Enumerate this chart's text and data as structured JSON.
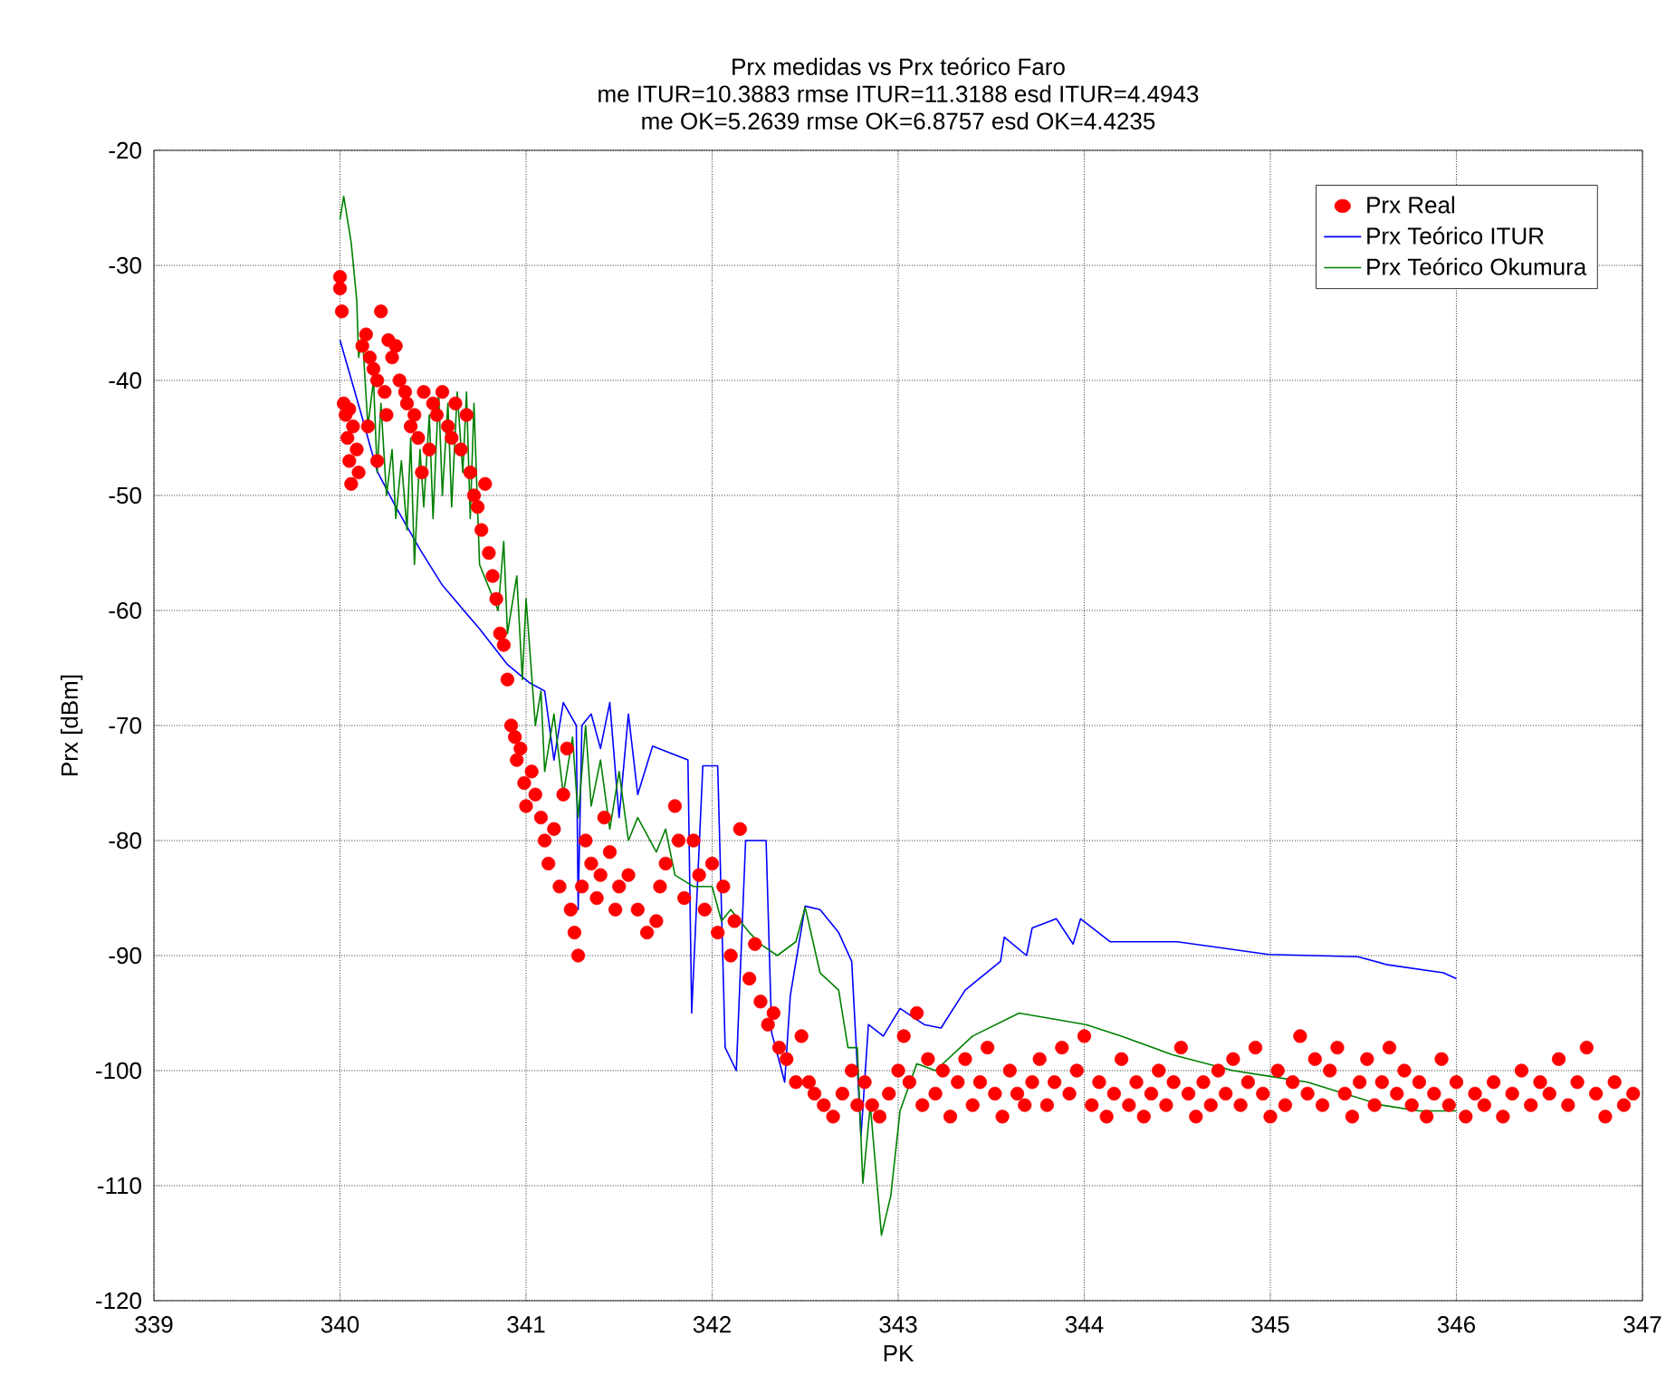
{
  "chart_data": {
    "type": "line",
    "title": "Prx medidas vs Prx teórico Faro",
    "subtitle": "me ITUR=10.3883 rmse ITUR=11.3188 esd ITUR=4.4943",
    "annotations": [
      "me OK=5.2639 rmse OK=6.8757 esd OK=4.4235"
    ],
    "xlabel": "PK",
    "ylabel": "Prx [dBm]",
    "xlim": [
      339,
      347
    ],
    "ylim": [
      -120,
      -20
    ],
    "xticks": [
      339,
      340,
      341,
      342,
      343,
      344,
      345,
      346,
      347
    ],
    "yticks": [
      -120,
      -110,
      -100,
      -90,
      -80,
      -70,
      -60,
      -50,
      -40,
      -30,
      -20
    ],
    "grid": true,
    "legend": "top right",
    "series": [
      {
        "name": "Prx Real",
        "type": "scatter",
        "marker": "circle",
        "color": "#ff0000",
        "x": [
          340.0,
          340.0,
          340.01,
          340.02,
          340.03,
          340.04,
          340.05,
          340.06,
          340.07,
          340.09,
          340.1,
          340.05,
          340.12,
          340.14,
          340.16,
          340.18,
          340.2,
          340.22,
          340.24,
          340.26,
          340.28,
          340.3,
          340.15,
          340.2,
          340.25,
          340.32,
          340.35,
          340.38,
          340.4,
          340.42,
          340.45,
          340.48,
          340.36,
          340.44,
          340.5,
          340.52,
          340.55,
          340.58,
          340.6,
          340.62,
          340.65,
          340.68,
          340.7,
          340.72,
          340.74,
          340.76,
          340.78,
          340.8,
          340.82,
          340.84,
          340.86,
          340.88,
          340.9,
          340.92,
          340.94,
          340.95,
          340.97,
          340.99,
          341.0,
          341.03,
          341.05,
          341.08,
          341.1,
          341.12,
          341.15,
          341.18,
          341.2,
          341.22,
          341.24,
          341.26,
          341.28,
          341.3,
          341.32,
          341.35,
          341.38,
          341.4,
          341.42,
          341.45,
          341.48,
          341.5,
          341.55,
          341.6,
          341.65,
          341.7,
          341.72,
          341.75,
          341.8,
          341.82,
          341.85,
          341.9,
          341.93,
          341.96,
          342.0,
          342.03,
          342.06,
          342.1,
          342.12,
          342.15,
          342.2,
          342.23,
          342.26,
          342.3,
          342.33,
          342.36,
          342.4,
          342.45,
          342.48,
          342.52,
          342.55,
          342.6,
          342.65,
          342.7,
          342.75,
          342.78,
          342.82,
          342.86,
          342.9,
          342.95,
          343.0,
          343.03,
          343.06,
          343.1,
          343.13,
          343.16,
          343.2,
          343.24,
          343.28,
          343.32,
          343.36,
          343.4,
          343.44,
          343.48,
          343.52,
          343.56,
          343.6,
          343.64,
          343.68,
          343.72,
          343.76,
          343.8,
          343.84,
          343.88,
          343.92,
          343.96,
          344.0,
          344.04,
          344.08,
          344.12,
          344.16,
          344.2,
          344.24,
          344.28,
          344.32,
          344.36,
          344.4,
          344.44,
          344.48,
          344.52,
          344.56,
          344.6,
          344.64,
          344.68,
          344.72,
          344.76,
          344.8,
          344.84,
          344.88,
          344.92,
          344.96,
          345.0,
          345.04,
          345.08,
          345.12,
          345.16,
          345.2,
          345.24,
          345.28,
          345.32,
          345.36,
          345.4,
          345.44,
          345.48,
          345.52,
          345.56,
          345.6,
          345.64,
          345.68,
          345.72,
          345.76,
          345.8,
          345.84,
          345.88,
          345.92,
          345.96,
          346.0,
          346.05,
          346.1,
          346.15,
          346.2,
          346.25,
          346.3,
          346.35,
          346.4,
          346.45,
          346.5,
          346.55,
          346.6,
          346.65,
          346.7,
          346.75,
          346.8,
          346.85,
          346.9,
          346.95
        ],
        "values": [
          -31,
          -32,
          -34,
          -42,
          -43,
          -45,
          -47,
          -49,
          -44,
          -46,
          -48,
          -42.5,
          -37,
          -36,
          -38,
          -39,
          -40,
          -34,
          -41,
          -36.5,
          -38,
          -37,
          -44,
          -47,
          -43,
          -40,
          -41,
          -44,
          -43,
          -45,
          -41,
          -46,
          -42,
          -48,
          -42,
          -43,
          -41,
          -44,
          -45,
          -42,
          -46,
          -43,
          -48,
          -50,
          -51,
          -53,
          -49,
          -55,
          -57,
          -59,
          -62,
          -63,
          -66,
          -70,
          -71,
          -73,
          -72,
          -75,
          -77,
          -74,
          -76,
          -78,
          -80,
          -82,
          -79,
          -84,
          -76,
          -72,
          -86,
          -88,
          -90,
          -84,
          -80,
          -82,
          -85,
          -83,
          -78,
          -81,
          -86,
          -84,
          -83,
          -86,
          -88,
          -87,
          -84,
          -82,
          -77,
          -80,
          -85,
          -80,
          -83,
          -86,
          -82,
          -88,
          -84,
          -90,
          -87,
          -79,
          -92,
          -89,
          -94,
          -96,
          -95,
          -98,
          -99,
          -101,
          -97,
          -101,
          -102,
          -103,
          -104,
          -102,
          -100,
          -103,
          -101,
          -103,
          -104,
          -102,
          -100,
          -97,
          -101,
          -95,
          -103,
          -99,
          -102,
          -100,
          -104,
          -101,
          -99,
          -103,
          -101,
          -98,
          -102,
          -104,
          -100,
          -102,
          -103,
          -101,
          -99,
          -103,
          -101,
          -98,
          -102,
          -100,
          -97,
          -103,
          -101,
          -104,
          -102,
          -99,
          -103,
          -101,
          -104,
          -102,
          -100,
          -103,
          -101,
          -98,
          -102,
          -104,
          -101,
          -103,
          -100,
          -102,
          -99,
          -103,
          -101,
          -98,
          -102,
          -104,
          -100,
          -103,
          -101,
          -97,
          -102,
          -99,
          -103,
          -100,
          -98,
          -102,
          -104,
          -101,
          -99,
          -103,
          -101,
          -98,
          -102,
          -100,
          -103,
          -101,
          -104,
          -102,
          -99,
          -103,
          -101,
          -104,
          -102,
          -103,
          -101,
          -104,
          -102,
          -100,
          -103,
          -101,
          -102,
          -99,
          -103,
          -101,
          -98,
          -102,
          -104,
          -101,
          -103,
          -102
        ]
      },
      {
        "name": "Prx Teórico ITUR",
        "color": "#0000ff",
        "marker": "none",
        "x": [
          340.0,
          340.11,
          340.2,
          340.3,
          340.43,
          340.55,
          340.75,
          340.9,
          341.02,
          341.1,
          341.15,
          341.2,
          341.27,
          341.28,
          341.3,
          341.35,
          341.4,
          341.45,
          341.5,
          341.55,
          341.6,
          341.68,
          341.87,
          341.89,
          341.95,
          342.03,
          342.07,
          342.13,
          342.18,
          342.29,
          342.32,
          342.39,
          342.42,
          342.5,
          342.58,
          342.68,
          342.75,
          342.8,
          342.84,
          342.92,
          343.01,
          343.14,
          343.23,
          343.36,
          343.55,
          343.57,
          343.69,
          343.72,
          343.85,
          343.94,
          343.98,
          344.14,
          344.5,
          344.99,
          345.47,
          345.63,
          345.93,
          346.0
        ],
        "values": [
          -36.5,
          -42.7,
          -47.9,
          -51,
          -54.7,
          -57.8,
          -61.6,
          -64.7,
          -66.3,
          -67,
          -73,
          -68,
          -70,
          -86,
          -70,
          -69,
          -72,
          -68,
          -78,
          -69,
          -76,
          -71.8,
          -73,
          -95,
          -73.5,
          -73.5,
          -98,
          -100,
          -80,
          -80,
          -96.7,
          -101,
          -93.5,
          -85.7,
          -86,
          -88,
          -90.5,
          -105.7,
          -96,
          -97,
          -94.6,
          -96,
          -96.3,
          -93,
          -90.5,
          -88.4,
          -90,
          -87.6,
          -86.8,
          -89,
          -86.8,
          -88.8,
          -88.8,
          -89.9,
          -90.1,
          -90.8,
          -91.5,
          -92
        ]
      },
      {
        "name": "Prx Teórico Okumura",
        "color": "#008000",
        "marker": "none",
        "x": [
          340.0,
          340.02,
          340.06,
          340.09,
          340.1,
          340.12,
          340.15,
          340.18,
          340.2,
          340.22,
          340.25,
          340.28,
          340.3,
          340.33,
          340.36,
          340.38,
          340.4,
          340.43,
          340.45,
          340.48,
          340.5,
          340.53,
          340.55,
          340.58,
          340.6,
          340.63,
          340.66,
          340.68,
          340.7,
          340.72,
          340.75,
          340.8,
          340.85,
          340.88,
          340.9,
          340.95,
          340.98,
          341.0,
          341.05,
          341.08,
          341.1,
          341.15,
          341.2,
          341.25,
          341.28,
          341.32,
          341.35,
          341.4,
          341.45,
          341.5,
          341.55,
          341.6,
          341.7,
          341.75,
          341.8,
          341.9,
          342.0,
          342.05,
          342.1,
          342.2,
          342.26,
          342.35,
          342.45,
          342.5,
          342.58,
          342.68,
          342.73,
          342.78,
          342.81,
          342.85,
          342.91,
          342.96,
          343.01,
          343.1,
          343.2,
          343.4,
          343.65,
          344.01,
          344.2,
          344.47,
          344.8,
          345.0,
          345.2,
          345.4,
          345.6,
          345.8,
          346.0
        ],
        "values": [
          -26,
          -24,
          -28,
          -33,
          -38,
          -36,
          -44,
          -40,
          -48,
          -42,
          -50,
          -46,
          -52,
          -47,
          -53,
          -45,
          -56,
          -46,
          -51,
          -43,
          -52,
          -41,
          -50,
          -42,
          -51,
          -41,
          -48,
          -41,
          -52,
          -42,
          -56,
          -58,
          -60,
          -54,
          -62,
          -57,
          -66,
          -59,
          -70,
          -67,
          -74,
          -69,
          -76,
          -71,
          -78,
          -70,
          -77,
          -73,
          -79,
          -74,
          -80,
          -78,
          -81,
          -79,
          -83,
          -84,
          -84,
          -87,
          -86,
          -88,
          -89,
          -90,
          -88.8,
          -85.8,
          -91.5,
          -93,
          -98,
          -98,
          -109.8,
          -103,
          -114.3,
          -110.9,
          -103.5,
          -99.4,
          -100,
          -97,
          -95,
          -96,
          -97,
          -98.6,
          -100,
          -100.5,
          -101,
          -102,
          -103,
          -103.5,
          -103.5
        ]
      }
    ]
  }
}
